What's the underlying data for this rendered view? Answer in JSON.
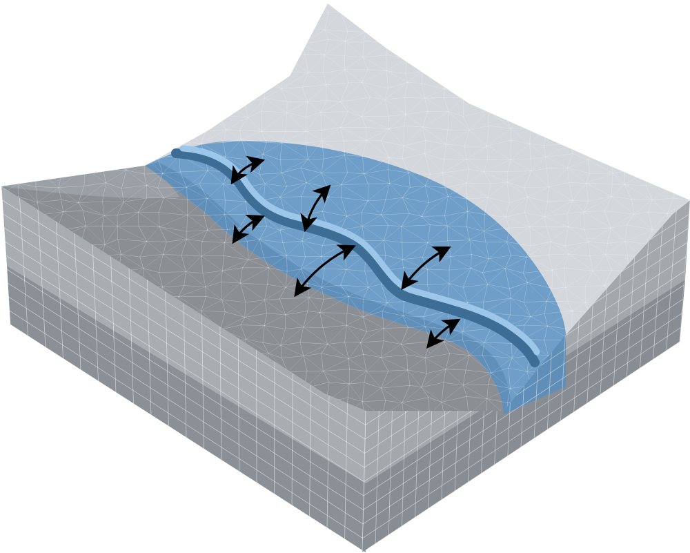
{
  "diagram": {
    "subject": "river-valley-mesh-block",
    "colors": {
      "background": "#ffffff",
      "top_light": "#d4d8dc",
      "top_light_far": "#c8cdd2",
      "top_dark": "#8b8f94",
      "top_dark_edge": "#9aa0a5",
      "front_upper": "#a8adb2",
      "front_lower": "#8a9096",
      "right_upper": "#a3a8ad",
      "right_lower": "#878d93",
      "water": "#6f9fc8",
      "water_dark": "#4f7fa8",
      "channel_light": "#9cc7ea",
      "channel_dark": "#3d6d95",
      "mesh_line": "#ffffff",
      "arrow": "#000000"
    },
    "arrows": [
      {
        "name": "arrow-1"
      },
      {
        "name": "arrow-2"
      },
      {
        "name": "arrow-3"
      },
      {
        "name": "arrow-4"
      },
      {
        "name": "arrow-5"
      },
      {
        "name": "arrow-6"
      }
    ]
  }
}
